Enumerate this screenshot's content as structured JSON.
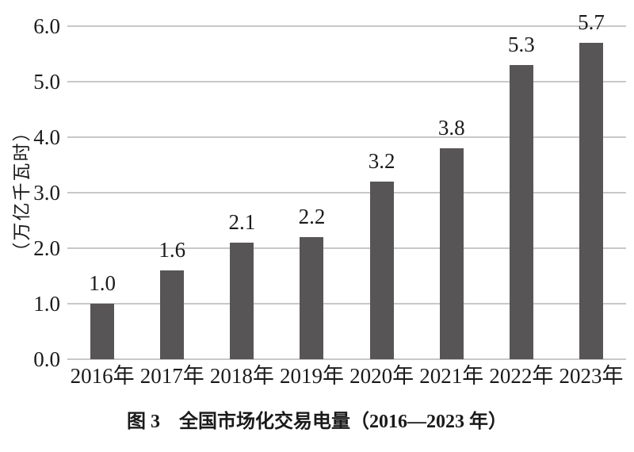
{
  "figure": {
    "caption": "图 3　全国市场化交易电量（2016—2023 年）"
  },
  "chart_data": {
    "type": "bar",
    "title": "图 3　全国市场化交易电量（2016—2023 年）",
    "categories": [
      "2016年",
      "2017年",
      "2018年",
      "2019年",
      "2020年",
      "2021年",
      "2022年",
      "2023年"
    ],
    "values": [
      1.0,
      1.6,
      2.1,
      2.2,
      3.2,
      3.8,
      5.3,
      5.7
    ],
    "data_labels": [
      "1.0",
      "1.6",
      "2.1",
      "2.2",
      "3.2",
      "3.8",
      "5.3",
      "5.7"
    ],
    "xlabel": "",
    "ylabel": "（万亿千瓦时）",
    "ylim": [
      0,
      6
    ],
    "ytick_step": 1.0,
    "yticks": [
      "6.0",
      "5.0",
      "4.0",
      "3.0",
      "2.0",
      "1.0",
      "0.0"
    ],
    "grid": true,
    "legend": false,
    "bar_color": "#585556",
    "gridline_color": "#c8c8c8",
    "text_color": "#1a1a1a",
    "background_color": "#ffffff"
  }
}
